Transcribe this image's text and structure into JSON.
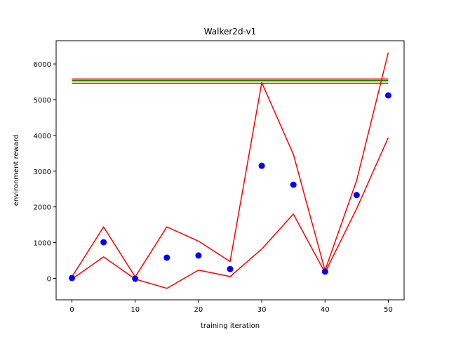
{
  "chart_data": {
    "type": "scatter",
    "title": "Walker2d-v1",
    "xlabel": "training iteration",
    "ylabel": "environment reward",
    "xlim": [
      -2.5,
      52.5
    ],
    "ylim": [
      -600,
      6650
    ],
    "x_ticks": [
      0,
      10,
      20,
      30,
      40,
      50
    ],
    "y_ticks": [
      0,
      1000,
      2000,
      3000,
      4000,
      5000,
      6000
    ],
    "grid": false,
    "points": {
      "x": [
        0,
        5,
        10,
        15,
        20,
        25,
        30,
        35,
        40,
        45,
        50
      ],
      "y": [
        10,
        1010,
        -10,
        580,
        640,
        260,
        3150,
        2620,
        190,
        2330,
        5120
      ],
      "color": "#0000ff"
    },
    "lines": [
      {
        "x": [
          0,
          5,
          10,
          15,
          20,
          25,
          30,
          35,
          40,
          45,
          50
        ],
        "y": [
          40,
          1440,
          40,
          1440,
          1040,
          470,
          5480,
          3470,
          220,
          2740,
          6320
        ],
        "color": "#ff0000"
      },
      {
        "x": [
          0,
          5,
          10,
          15,
          20,
          25,
          30,
          35,
          40,
          45,
          50
        ],
        "y": [
          -20,
          600,
          -20,
          -280,
          230,
          50,
          820,
          1800,
          160,
          1950,
          3940
        ],
        "color": "#ff0000"
      }
    ],
    "hlines": [
      {
        "y": 5580,
        "x": [
          0,
          50
        ],
        "color": "#ff0000"
      },
      {
        "y": 5540,
        "x": [
          0,
          50
        ],
        "color": "#008000"
      },
      {
        "y": 5500,
        "x": [
          0,
          50
        ],
        "color": "#ffbf00"
      },
      {
        "y": 5460,
        "x": [
          0,
          50
        ],
        "color": "#ff0000"
      }
    ]
  }
}
